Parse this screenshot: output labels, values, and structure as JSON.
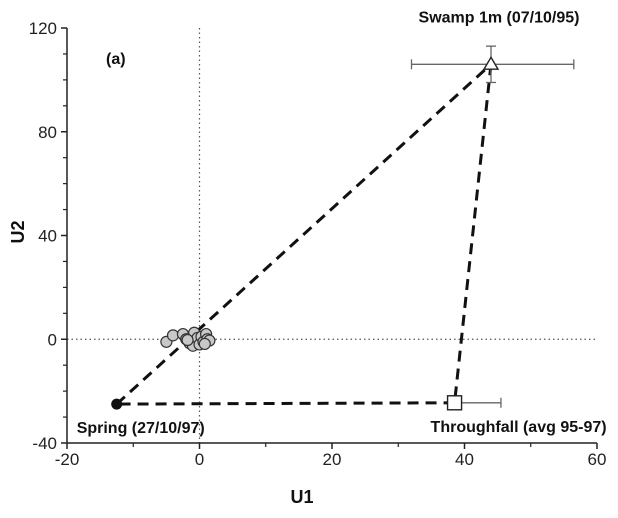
{
  "chart_data": {
    "type": "scatter",
    "panel_label": "(a)",
    "xlabel": "U1",
    "ylabel": "U2",
    "xlim": [
      -20,
      60
    ],
    "ylim": [
      -40,
      120
    ],
    "xticks": [
      -20,
      0,
      20,
      40,
      60
    ],
    "yticks": [
      -40,
      0,
      40,
      80,
      120
    ],
    "reference_lines": {
      "x": 0,
      "y": 0,
      "style": "dotted"
    },
    "end_members": [
      {
        "label": "Swamp 1m (07/10/95)",
        "x": 44,
        "y": 106,
        "marker": "open-triangle",
        "x_err": [
          32,
          56.5
        ],
        "y_err": [
          99,
          113
        ]
      },
      {
        "label": "Throughfall (avg 95-97)",
        "x": 38.5,
        "y": -24.5,
        "marker": "open-square",
        "x_err": [
          38.5,
          45.5
        ]
      },
      {
        "label": "Spring (27/10/97)",
        "x": -12.5,
        "y": -25,
        "marker": "filled-circle"
      }
    ],
    "mixing_lines": [
      [
        [
          -12.5,
          -25
        ],
        [
          44,
          106
        ]
      ],
      [
        [
          44,
          106
        ],
        [
          38.5,
          -24.5
        ]
      ],
      [
        [
          38.5,
          -24.5
        ],
        [
          -12.5,
          -25
        ]
      ]
    ],
    "samples": [
      {
        "x": -5.0,
        "y": -1.0
      },
      {
        "x": -4.0,
        "y": 1.5
      },
      {
        "x": -2.5,
        "y": 2.0
      },
      {
        "x": -2.0,
        "y": 0.0
      },
      {
        "x": -1.5,
        "y": -1.5
      },
      {
        "x": -1.0,
        "y": -2.5
      },
      {
        "x": -0.8,
        "y": 2.5
      },
      {
        "x": -0.3,
        "y": 0.5
      },
      {
        "x": 0.0,
        "y": -2.0
      },
      {
        "x": 0.3,
        "y": 1.0
      },
      {
        "x": 0.6,
        "y": -1.0
      },
      {
        "x": 1.0,
        "y": 2.0
      },
      {
        "x": 1.2,
        "y": 0.0
      },
      {
        "x": 1.5,
        "y": -0.5
      },
      {
        "x": 0.8,
        "y": -1.8
      },
      {
        "x": -1.8,
        "y": -0.3
      }
    ]
  }
}
